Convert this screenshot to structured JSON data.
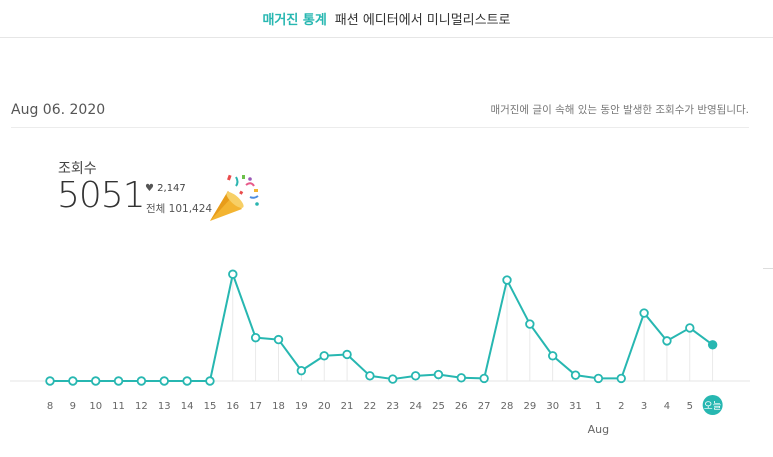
{
  "header": {
    "accent_label": "매거진 통계",
    "title": "패션 에디터에서 미니멀리스트로"
  },
  "date_row": {
    "date": "Aug 06. 2020",
    "note": "매거진에 글이 속해 있는 동안 발생한 조회수가 반영됩니다."
  },
  "stats": {
    "label": "조회수",
    "value": "5051",
    "likes": "2,147",
    "total": "전체 101,424"
  },
  "colors": {
    "accent": "#27b7b1",
    "grid": "#e4e4e4"
  },
  "chart_data": {
    "type": "line",
    "categories": [
      "8",
      "9",
      "10",
      "11",
      "12",
      "13",
      "14",
      "15",
      "16",
      "17",
      "18",
      "19",
      "20",
      "21",
      "22",
      "23",
      "24",
      "25",
      "26",
      "27",
      "28",
      "29",
      "30",
      "31",
      "1",
      "2",
      "3",
      "4",
      "5",
      "오늘"
    ],
    "month_label": "Aug",
    "series": [
      {
        "values": [
          0,
          0,
          0,
          0,
          0,
          0,
          0,
          0,
          1650,
          670,
          640,
          160,
          390,
          410,
          80,
          30,
          80,
          100,
          50,
          40,
          1560,
          880,
          390,
          90,
          40,
          40,
          1050,
          620,
          820,
          560
        ]
      }
    ],
    "ylim": [
      0,
      1700
    ],
    "grid": false,
    "today_highlight": true
  }
}
